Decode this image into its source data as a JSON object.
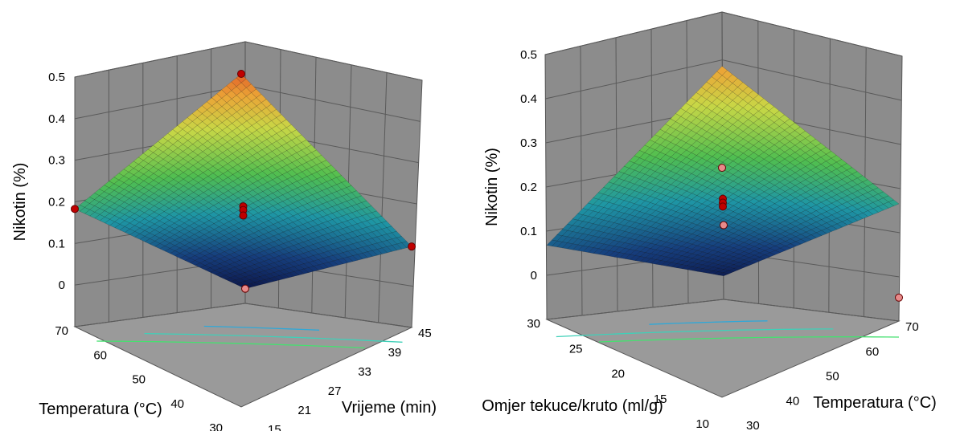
{
  "chart_data": [
    {
      "type": "surface3d",
      "zlabel": "Nikotin (%)",
      "xlabel": "Temperatura (°C)",
      "ylabel": "Vrijeme (min)",
      "z_ticks": [
        "0",
        "0.1",
        "0.2",
        "0.3",
        "0.4",
        "0.5"
      ],
      "x_ticks": [
        "30",
        "40",
        "50",
        "60",
        "70"
      ],
      "y_ticks": [
        "15",
        "21",
        "27",
        "33",
        "39",
        "45"
      ],
      "zlim": [
        -0.1,
        0.5
      ],
      "xlim": [
        30,
        70
      ],
      "ylim": [
        15,
        45
      ],
      "corner_values": {
        "t30_v15": -0.06,
        "t70_v15": 0.22,
        "t30_v45": 0.12,
        "t70_v45": 0.5
      },
      "design_points": [
        {
          "temperature": 70,
          "time": 45,
          "nikotin": 0.5
        },
        {
          "temperature": 70,
          "time": 15,
          "nikotin": 0.22
        },
        {
          "temperature": 30,
          "time": 45,
          "nikotin": 0.12
        },
        {
          "temperature": 50,
          "time": 30,
          "nikotin": 0.19
        },
        {
          "temperature": 50,
          "time": 30,
          "nikotin": 0.18
        },
        {
          "temperature": 50,
          "time": 30,
          "nikotin": 0.165
        },
        {
          "temperature": 30,
          "time": 15,
          "nikotin": -0.06
        }
      ],
      "grid": true,
      "colormap": "blue-cyan-green-yellow-red"
    },
    {
      "type": "surface3d",
      "zlabel": "Nikotin (%)",
      "xlabel": "Omjer tekuce/kruto (ml/g)",
      "ylabel": "Temperatura (°C)",
      "z_ticks": [
        "0",
        "0.1",
        "0.2",
        "0.3",
        "0.4",
        "0.5"
      ],
      "x_ticks": [
        "10",
        "15",
        "20",
        "25",
        "30"
      ],
      "y_ticks": [
        "30",
        "40",
        "50",
        "60",
        "70"
      ],
      "zlim": [
        -0.1,
        0.5
      ],
      "xlim": [
        10,
        30
      ],
      "ylim": [
        30,
        70
      ],
      "corner_values": {
        "r10_t30": -0.04,
        "r30_t30": 0.09,
        "r10_t70": 0.2,
        "r30_t70": 0.46
      },
      "design_points": [
        {
          "ratio": 30,
          "temperature": 30,
          "nikotin": 0.09
        },
        {
          "ratio": 10,
          "temperature": 70,
          "nikotin": 0.2
        },
        {
          "ratio": 10,
          "temperature": 30,
          "nikotin": -0.04
        },
        {
          "ratio": 20,
          "temperature": 50,
          "nikotin": 0.175
        },
        {
          "ratio": 20,
          "temperature": 50,
          "nikotin": 0.165
        },
        {
          "ratio": 20,
          "temperature": 50,
          "nikotin": 0.155
        }
      ],
      "grid": true,
      "colormap": "blue-cyan-green-yellow-red"
    }
  ]
}
